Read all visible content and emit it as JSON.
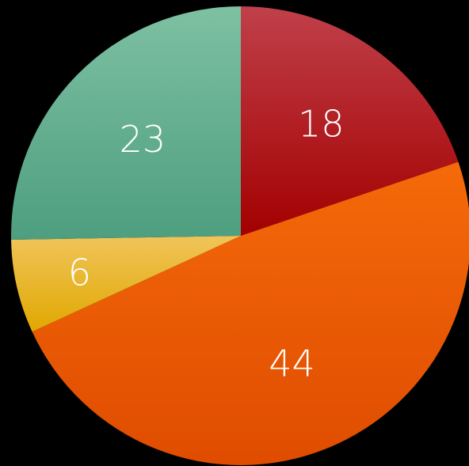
{
  "chart_data": {
    "type": "pie",
    "title": "",
    "legend": "none",
    "start_angle_deg": 0,
    "direction": "clockwise",
    "slices": [
      {
        "label": "18",
        "value": 18,
        "color_top": "#c0404a",
        "color_bottom": "#a30000"
      },
      {
        "label": "44",
        "value": 44,
        "color_top": "#f56a0a",
        "color_bottom": "#df4c00"
      },
      {
        "label": "6",
        "value": 6,
        "color_top": "#f0c45a",
        "color_bottom": "#e0a800"
      },
      {
        "label": "23",
        "value": 23,
        "color_top": "#7ec0a2",
        "color_bottom": "#4e9e80"
      }
    ]
  }
}
